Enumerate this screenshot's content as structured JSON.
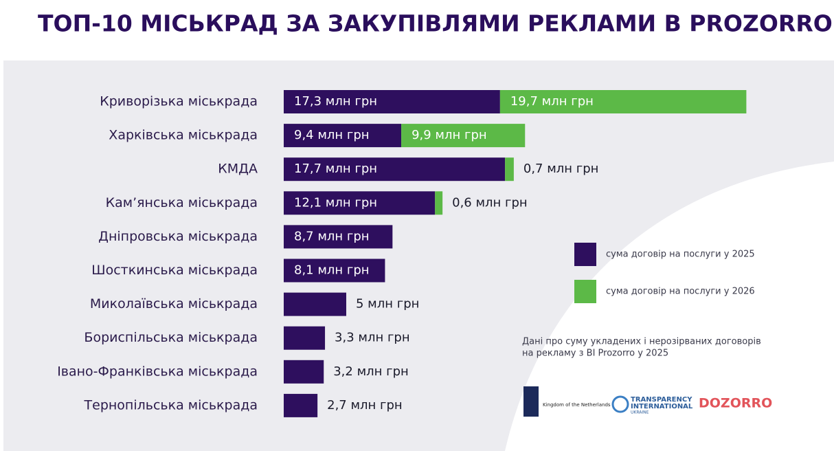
{
  "chart_data": {
    "type": "bar",
    "orientation": "horizontal",
    "stacked": true,
    "title": "ТОП-10 МІСЬКРАД ЗА ЗАКУПІВЛЯМИ РЕКЛАМИ В PROZORRO",
    "categories": [
      "Криворізька міськрада",
      "Харківська міськрада",
      "КМДА",
      "Кам’янська міськрада",
      "Дніпровська міськрада",
      "Шосткинська міськрада",
      "Миколаївська міськрада",
      "Бориспільська міськрада",
      "Івано-Франківська міськрада",
      "Тернопільська міськрада"
    ],
    "series": [
      {
        "name": "сума договір на послуги у 2025",
        "color": "#2e0f5e",
        "values": [
          17.3,
          9.4,
          17.7,
          12.1,
          8.7,
          8.1,
          5,
          3.3,
          3.2,
          2.7
        ],
        "value_labels": [
          "17,3 млн грн",
          "9,4 млн грн",
          "17,7 млн грн",
          "12,1 млн грн",
          "8,7 млн грн",
          "8,1 млн грн",
          "5 млн грн",
          "3,3 млн грн",
          "3,2 млн грн",
          "2,7 млн грн"
        ]
      },
      {
        "name": "сума договір на послуги у 2026",
        "color": "#5cb947",
        "values": [
          19.7,
          9.9,
          0.7,
          0.6,
          null,
          null,
          null,
          null,
          null,
          null
        ],
        "value_labels": [
          "19,7 млн грн",
          "9,9 млн грн",
          "0,7 млн грн",
          "0,6 млн грн",
          null,
          null,
          null,
          null,
          null,
          null
        ]
      }
    ],
    "annotations": [
      "Дані про суму укладених і нерозірваних договорів",
      "на рекламу з BI Prozorro у 2025"
    ],
    "logos": [
      "Kingdom of the Netherlands",
      "TRANSPARENCY",
      "INTERNATIONAL",
      "UKRAINE",
      "DOZORRO"
    ]
  }
}
